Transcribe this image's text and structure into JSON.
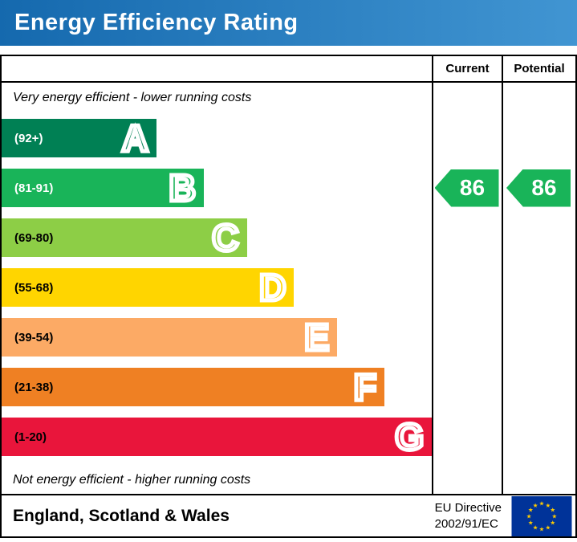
{
  "title_bar": {
    "title": "Energy Efficiency Rating"
  },
  "table_header": {
    "current": "Current",
    "potential": "Potential"
  },
  "notes": {
    "top": "Very energy efficient - lower running costs",
    "bottom": "Not energy efficient - higher running costs"
  },
  "chart_data": {
    "type": "bar",
    "title": "Energy Efficiency Rating",
    "bands": [
      {
        "letter": "A",
        "range": "(92+)",
        "min": 92,
        "max": 100,
        "color": "#008054",
        "text_color": "#ffffff",
        "width_pct": 36
      },
      {
        "letter": "B",
        "range": "(81-91)",
        "min": 81,
        "max": 91,
        "color": "#19b459",
        "text_color": "#ffffff",
        "width_pct": 47
      },
      {
        "letter": "C",
        "range": "(69-80)",
        "min": 69,
        "max": 80,
        "color": "#8dce46",
        "text_color": "#000000",
        "width_pct": 57
      },
      {
        "letter": "D",
        "range": "(55-68)",
        "min": 55,
        "max": 68,
        "color": "#ffd500",
        "text_color": "#000000",
        "width_pct": 68
      },
      {
        "letter": "E",
        "range": "(39-54)",
        "min": 39,
        "max": 54,
        "color": "#fcaa65",
        "text_color": "#000000",
        "width_pct": 78
      },
      {
        "letter": "F",
        "range": "(21-38)",
        "min": 21,
        "max": 38,
        "color": "#ef8023",
        "text_color": "#000000",
        "width_pct": 89
      },
      {
        "letter": "G",
        "range": "(1-20)",
        "min": 1,
        "max": 20,
        "color": "#e9153b",
        "text_color": "#000000",
        "width_pct": 100
      }
    ],
    "ratings": {
      "current": {
        "label": "Current",
        "value": "86",
        "band": "B",
        "color": "#19b459"
      },
      "potential": {
        "label": "Potential",
        "value": "86",
        "band": "B",
        "color": "#19b459"
      }
    }
  },
  "footer": {
    "region": "England, Scotland & Wales",
    "directive_line1": "EU Directive",
    "directive_line2": "2002/91/EC"
  },
  "colors": {
    "header_blue_left": "#1569ae",
    "header_blue_right": "#4195d2",
    "flag_blue": "#003399",
    "flag_star_yellow": "#ffcc00"
  }
}
